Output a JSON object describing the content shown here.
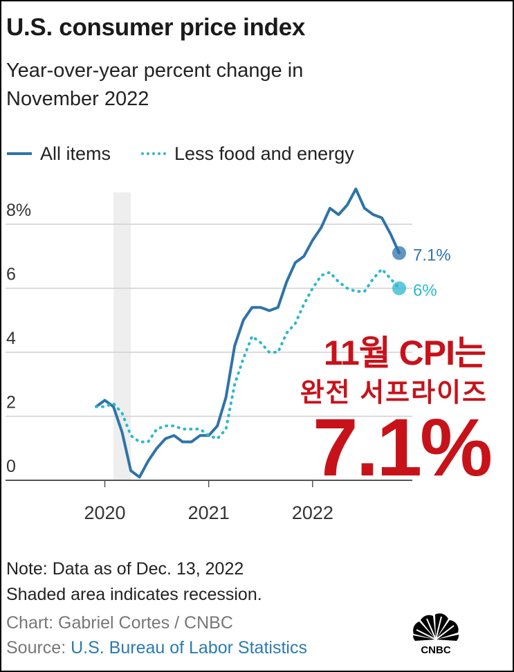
{
  "header": {
    "title": "U.S. consumer price index",
    "subtitle": "Year-over-year percent change in November 2022"
  },
  "legend": [
    {
      "label": "All items",
      "style": "solid",
      "color": "#2e73a8"
    },
    {
      "label": "Less food and energy",
      "style": "dotted",
      "color": "#2bb7cf"
    }
  ],
  "overlay": {
    "line1": "11월 CPI는",
    "line2": "완전 서프라이즈",
    "line3": "7.1%",
    "color": "#c8121a"
  },
  "footer": {
    "note1": "Note: Data as of Dec. 13, 2022",
    "note2": "Shaded area indicates recession.",
    "chart_credit": "Chart: Gabriel Cortes / CNBC",
    "source_label": "Source: ",
    "source_name": "U.S. Bureau of Labor Statistics",
    "logo_text": "CNBC"
  },
  "chart_data": {
    "type": "line",
    "x": [
      "2019-12",
      "2020-01",
      "2020-02",
      "2020-03",
      "2020-04",
      "2020-05",
      "2020-06",
      "2020-07",
      "2020-08",
      "2020-09",
      "2020-10",
      "2020-11",
      "2020-12",
      "2021-01",
      "2021-02",
      "2021-03",
      "2021-04",
      "2021-05",
      "2021-06",
      "2021-07",
      "2021-08",
      "2021-09",
      "2021-10",
      "2021-11",
      "2021-12",
      "2022-01",
      "2022-02",
      "2022-03",
      "2022-04",
      "2022-05",
      "2022-06",
      "2022-07",
      "2022-08",
      "2022-09",
      "2022-10",
      "2022-11"
    ],
    "series": [
      {
        "name": "All items",
        "color": "#2e73a8",
        "style": "solid",
        "values": [
          2.3,
          2.5,
          2.3,
          1.5,
          0.3,
          0.1,
          0.6,
          1.0,
          1.3,
          1.4,
          1.2,
          1.2,
          1.4,
          1.4,
          1.7,
          2.6,
          4.2,
          5.0,
          5.4,
          5.4,
          5.3,
          5.4,
          6.2,
          6.8,
          7.0,
          7.5,
          7.9,
          8.5,
          8.3,
          8.6,
          9.1,
          8.5,
          8.3,
          8.2,
          7.7,
          7.1
        ],
        "end_label": "7.1%"
      },
      {
        "name": "Less food and energy",
        "color": "#2bb7cf",
        "style": "dotted",
        "values": [
          2.3,
          2.3,
          2.4,
          2.1,
          1.4,
          1.2,
          1.2,
          1.6,
          1.7,
          1.7,
          1.6,
          1.6,
          1.6,
          1.4,
          1.3,
          1.6,
          3.0,
          3.8,
          4.5,
          4.3,
          4.0,
          4.0,
          4.6,
          4.9,
          5.5,
          6.0,
          6.4,
          6.5,
          6.2,
          6.0,
          5.9,
          5.9,
          6.3,
          6.6,
          6.3,
          6.0
        ],
        "end_label": "6%"
      }
    ],
    "x_ticks": [
      "2020",
      "2021",
      "2022"
    ],
    "y_ticks": [
      "0",
      "2",
      "4",
      "6",
      "8%"
    ],
    "ylim": [
      0,
      8.5
    ],
    "recession": {
      "start": "2020-02",
      "end": "2020-04"
    },
    "grid": true
  }
}
